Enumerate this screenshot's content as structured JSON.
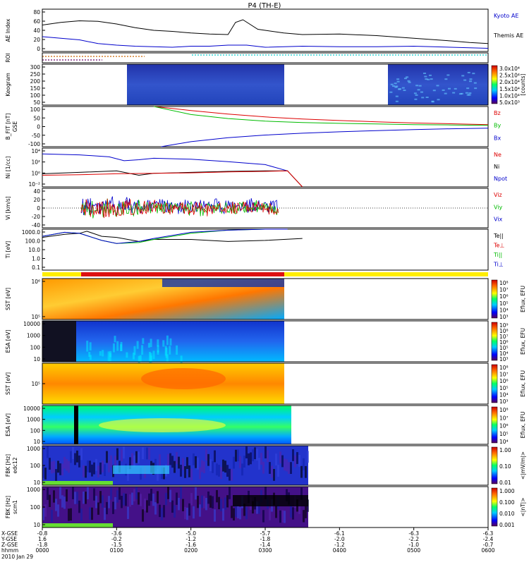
{
  "title": "P4 (TH-E)",
  "time_axis": {
    "ticks": [
      "0000",
      "0100",
      "0200",
      "0300",
      "0400",
      "0500",
      "0600"
    ],
    "date": "2010 Jan 29",
    "row_labels": [
      "X-GSE",
      "Y-GSE",
      "Z-GSE",
      "hhmm"
    ],
    "rows": [
      [
        "-0.8",
        "-3.6",
        "-5.0",
        "-5.7",
        "-6.1",
        "-6.3",
        "-6.3"
      ],
      [
        "1.6",
        "-0.2",
        "-1.2",
        "-1.8",
        "-2.0",
        "-2.2",
        "-2.4"
      ],
      [
        "-1.8",
        "-1.5",
        "-1.6",
        "-1.4",
        "-1.2",
        "-1.0",
        "-0.7"
      ]
    ]
  },
  "panels": [
    {
      "id": "ae",
      "label": "AE Index",
      "yticks": [
        "80",
        "60",
        "40",
        "20",
        "0"
      ],
      "legend": [
        {
          "text": "Kyoto AE",
          "color": "#0000cc"
        },
        {
          "text": "Themis AE",
          "color": "#000000"
        }
      ]
    },
    {
      "id": "roi",
      "label": "ROI",
      "yticks": [],
      "legend": []
    },
    {
      "id": "keogram",
      "label": "Keogram",
      "yticks": [
        "300",
        "250",
        "200",
        "150",
        "100",
        "50"
      ],
      "legend": [],
      "colorbar": {
        "ticks": [
          "3.0x10⁴",
          "2.5x10⁴",
          "2.0x10⁴",
          "1.5x10⁴",
          "1.0x10⁴",
          "5.0x10³"
        ],
        "label": "[counts]"
      }
    },
    {
      "id": "bfit",
      "label": "B_FIT [nT]",
      "sub": "GSE",
      "yticks": [
        "100",
        "50",
        "0",
        "-50",
        "-100"
      ],
      "legend": [
        {
          "text": "Bz",
          "color": "#dd0000"
        },
        {
          "text": "By",
          "color": "#00bb00"
        },
        {
          "text": "Bx",
          "color": "#0000cc"
        }
      ]
    },
    {
      "id": "ni",
      "label": "Ni [1/cc]",
      "sub": "",
      "yticks": [
        "10⁴",
        "10²",
        "10⁰",
        "10⁻²"
      ],
      "legend": [
        {
          "text": "Ne",
          "color": "#dd0000"
        },
        {
          "text": "Ni",
          "color": "#000000"
        },
        {
          "text": "Npot",
          "color": "#0000cc"
        }
      ]
    },
    {
      "id": "vi",
      "label": "Vi [km/s]",
      "sub": "",
      "yticks": [
        "40",
        "20",
        "0",
        "-20",
        "-40"
      ],
      "legend": [
        {
          "text": "Viz",
          "color": "#dd0000"
        },
        {
          "text": "Viy",
          "color": "#00bb00"
        },
        {
          "text": "Vix",
          "color": "#0000cc"
        }
      ]
    },
    {
      "id": "ti",
      "label": "Ti [eV]",
      "sub": "",
      "yticks": [
        "1000.0",
        "100.0",
        "10.0",
        "1.0",
        "0.1"
      ],
      "legend": [
        {
          "text": "Te||",
          "color": "#000000"
        },
        {
          "text": "Te⊥",
          "color": "#dd0000"
        },
        {
          "text": "Ti||",
          "color": "#00bb00"
        },
        {
          "text": "Ti⊥",
          "color": "#0000cc"
        }
      ]
    },
    {
      "id": "sst_e",
      "label": "SST [eV]",
      "sub": "",
      "yticks": [
        "10⁶",
        "10⁵"
      ],
      "colorbar": {
        "ticks": [
          "10⁸",
          "10⁷",
          "10⁶",
          "10⁵",
          "10⁴",
          "10³"
        ],
        "label": "Eflux, EFU"
      }
    },
    {
      "id": "esa_e",
      "label": "ESA [eV]",
      "sub": "",
      "yticks": [
        "10000",
        "1000",
        "100",
        "10"
      ],
      "colorbar": {
        "ticks": [
          "10⁹",
          "10⁸",
          "10⁷",
          "10⁶",
          "10⁵",
          "10⁴",
          "10³"
        ],
        "label": "Eflux, EFU"
      }
    },
    {
      "id": "sst_i",
      "label": "SST [eV]",
      "sub": "",
      "yticks": [
        "10⁵"
      ],
      "colorbar": {
        "ticks": [
          "10⁸",
          "10⁷",
          "10⁶",
          "10⁵",
          "10⁴",
          "10³"
        ],
        "label": "Eflux, EFU"
      }
    },
    {
      "id": "esa_i",
      "label": "ESA [eV]",
      "sub": "",
      "yticks": [
        "10000",
        "1000",
        "100",
        "10"
      ],
      "colorbar": {
        "ticks": [
          "10⁸",
          "10⁷",
          "10⁶",
          "10⁵",
          "10⁴"
        ],
        "label": "Eflux, EFU"
      }
    },
    {
      "id": "fbk1",
      "label": "FBK [Hz]",
      "sub": "edc12",
      "yticks": [
        "1000",
        "100",
        "10"
      ],
      "colorbar": {
        "ticks": [
          "1.00",
          "0.10",
          "0.01"
        ],
        "label": "<|mV/m|>"
      }
    },
    {
      "id": "fbk2",
      "label": "FBK [Hz]",
      "sub": "scm1",
      "yticks": [
        "1000",
        "100",
        "10"
      ],
      "colorbar": {
        "ticks": [
          "1.000",
          "0.100",
          "0.010",
          "0.001"
        ],
        "label": "<|nT|>"
      }
    }
  ],
  "chart_data": [
    {
      "type": "line",
      "panel": "AE Index",
      "x_unit": "hours",
      "xlim": [
        0,
        6
      ],
      "ylim": [
        0,
        80
      ],
      "series": [
        {
          "name": "Themis AE",
          "x": [
            0,
            0.25,
            0.5,
            0.75,
            1.0,
            1.25,
            1.5,
            1.75,
            2.0,
            2.25,
            2.5,
            2.6,
            2.7,
            2.9,
            3.25,
            3.5,
            4.0,
            4.5,
            5.0,
            5.5,
            5.75,
            6.0
          ],
          "y": [
            50,
            55,
            58,
            57,
            52,
            45,
            40,
            38,
            35,
            33,
            32,
            55,
            60,
            42,
            35,
            32,
            33,
            30,
            25,
            20,
            17,
            15
          ]
        },
        {
          "name": "Kyoto AE",
          "x": [
            0,
            0.25,
            0.5,
            0.75,
            1.0,
            1.25,
            1.5,
            1.75,
            2.0,
            2.25,
            2.5,
            2.75,
            3.0,
            3.5,
            4.0,
            4.5,
            5.0,
            5.5,
            6.0
          ],
          "y": [
            28,
            25,
            22,
            15,
            12,
            10,
            9,
            8,
            10,
            10,
            12,
            12,
            8,
            10,
            9,
            9,
            10,
            8,
            6
          ]
        }
      ]
    },
    {
      "type": "line",
      "panel": "B_FIT [nT]",
      "x_unit": "hours",
      "xlim": [
        0,
        6
      ],
      "ylim": [
        -100,
        100
      ],
      "series": [
        {
          "name": "Bz",
          "x": [
            1.5,
            2.0,
            2.5,
            3.0,
            3.5,
            4.0,
            4.5,
            5.0,
            5.5,
            6.0
          ],
          "y": [
            100,
            80,
            62,
            48,
            38,
            30,
            24,
            18,
            14,
            10
          ]
        },
        {
          "name": "By",
          "x": [
            1.5,
            2.0,
            2.5,
            3.0,
            3.5,
            4.0,
            4.5,
            5.0,
            5.5,
            6.0
          ],
          "y": [
            100,
            60,
            40,
            27,
            20,
            16,
            13,
            10,
            8,
            6
          ]
        },
        {
          "name": "Bx",
          "x": [
            1.6,
            2.0,
            2.5,
            3.0,
            3.5,
            4.0,
            4.5,
            5.0,
            5.5,
            6.0
          ],
          "y": [
            -100,
            -75,
            -55,
            -42,
            -33,
            -26,
            -20,
            -15,
            -11,
            -8
          ]
        }
      ]
    },
    {
      "type": "line",
      "panel": "Ni",
      "x_unit": "hours",
      "xlim": [
        0,
        6
      ],
      "ylim_log10": [
        -3,
        5
      ],
      "series": [
        {
          "name": "Npot",
          "x": [
            0,
            0.5,
            0.9,
            1.1,
            1.3,
            1.5,
            2.0,
            2.5,
            3.0,
            3.3
          ],
          "y_log10": [
            3.8,
            3.6,
            3.2,
            2.4,
            2.6,
            2.9,
            2.7,
            2.2,
            1.6,
            0.3
          ]
        },
        {
          "name": "Ni",
          "x": [
            0,
            0.5,
            1.0,
            1.3,
            1.5,
            2.0,
            2.5,
            3.0,
            3.3,
            3.5
          ],
          "y_log10": [
            -0.3,
            0.0,
            0.3,
            -0.6,
            -0.2,
            0.0,
            0.2,
            0.3,
            0.3,
            -3
          ]
        },
        {
          "name": "Ne",
          "x": [
            0,
            0.5,
            1.0,
            1.5,
            2.0,
            2.5,
            3.0,
            3.3,
            3.5
          ],
          "y_log10": [
            -0.6,
            -0.5,
            -0.3,
            -0.2,
            -0.1,
            0.1,
            0.2,
            0.3,
            -3
          ]
        }
      ]
    },
    {
      "type": "line",
      "panel": "Ti",
      "x_unit": "hours",
      "xlim": [
        0,
        6
      ],
      "ylim_log10": [
        -1,
        3
      ],
      "series": [
        {
          "name": "Te||",
          "x": [
            0,
            0.3,
            0.5,
            0.6,
            0.8,
            1.0,
            1.3,
            1.5,
            2.0,
            2.5,
            3.0,
            3.5
          ],
          "y_log10": [
            2.2,
            2.5,
            2.6,
            2.8,
            2.3,
            2.2,
            1.8,
            2.0,
            2.0,
            1.8,
            1.9,
            2.1
          ]
        },
        {
          "name": "Ti||",
          "x": [
            0,
            0.3,
            0.5,
            0.8,
            1.0,
            1.3,
            1.5,
            2.0,
            2.5,
            3.0,
            3.3
          ],
          "y_log10": [
            2.3,
            2.7,
            2.6,
            1.9,
            1.6,
            1.7,
            2.0,
            2.6,
            2.9,
            3.0,
            3.1
          ]
        },
        {
          "name": "Ti⊥",
          "x": [
            0,
            0.3,
            0.5,
            0.8,
            1.0,
            1.3,
            1.5,
            2.0,
            2.5,
            3.0,
            3.3
          ],
          "y_log10": [
            2.3,
            2.7,
            2.6,
            1.9,
            1.6,
            1.8,
            2.1,
            2.7,
            2.9,
            3.0,
            3.1
          ]
        }
      ]
    }
  ]
}
